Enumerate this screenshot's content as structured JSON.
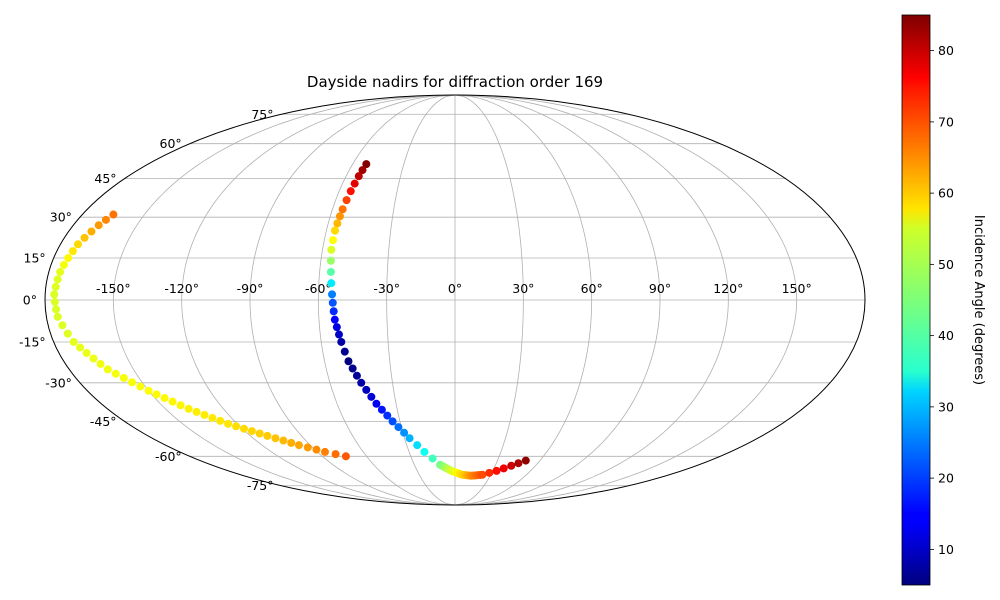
{
  "chart_data": {
    "type": "scatter",
    "projection": "mollweide",
    "title": "Dayside nadirs for diffraction order 169",
    "grid": true,
    "x_ticks": [
      "-150°",
      "-120°",
      "-90°",
      "-60°",
      "-30°",
      "0°",
      "30°",
      "60°",
      "90°",
      "120°",
      "150°"
    ],
    "y_ticks": [
      "-75°",
      "-60°",
      "-45°",
      "-30°",
      "-15°",
      "0°",
      "15°",
      "30°",
      "45°",
      "60°",
      "75°"
    ],
    "xlim": [
      -180,
      180
    ],
    "ylim": [
      -90,
      90
    ],
    "colorbar": {
      "label": "Incidence Angle (degrees)",
      "colormap": "jet",
      "range": [
        5,
        85
      ],
      "ticks": [
        "10",
        "20",
        "30",
        "40",
        "50",
        "60",
        "70",
        "80"
      ]
    },
    "series": [
      {
        "points": [
          {
            "lon": -165,
            "lat": 31,
            "c": 66
          },
          {
            "lon": -168,
            "lat": 27,
            "c": 63
          },
          {
            "lon": -172,
            "lat": 20,
            "c": 58
          },
          {
            "lon": -175,
            "lat": 10,
            "c": 53
          },
          {
            "lon": -176,
            "lat": 2,
            "c": 52
          },
          {
            "lon": -175,
            "lat": -6,
            "c": 52
          },
          {
            "lon": -171,
            "lat": -15,
            "c": 53
          },
          {
            "lon": -162,
            "lat": -25,
            "c": 54
          },
          {
            "lon": -150,
            "lat": -33,
            "c": 55
          },
          {
            "lon": -138,
            "lat": -40,
            "c": 56
          },
          {
            "lon": -125,
            "lat": -46,
            "c": 57
          },
          {
            "lon": -110,
            "lat": -51,
            "c": 59
          },
          {
            "lon": -97,
            "lat": -55,
            "c": 62
          },
          {
            "lon": -85,
            "lat": -58,
            "c": 65
          },
          {
            "lon": -74,
            "lat": -60,
            "c": 68
          }
        ]
      },
      {
        "points": [
          {
            "lon": -52,
            "lat": 51,
            "c": 85
          },
          {
            "lon": -53,
            "lat": 46,
            "c": 80
          },
          {
            "lon": -54,
            "lat": 40,
            "c": 74
          },
          {
            "lon": -55,
            "lat": 33,
            "c": 66
          },
          {
            "lon": -56,
            "lat": 25,
            "c": 58
          },
          {
            "lon": -56,
            "lat": 18,
            "c": 52
          },
          {
            "lon": -55,
            "lat": 10,
            "c": 42
          },
          {
            "lon": -54,
            "lat": 2,
            "c": 25
          },
          {
            "lon": -53,
            "lat": -7,
            "c": 15
          },
          {
            "lon": -51,
            "lat": -15,
            "c": 8
          },
          {
            "lon": -49,
            "lat": -22,
            "c": 5
          },
          {
            "lon": -45,
            "lat": -30,
            "c": 8
          },
          {
            "lon": -40,
            "lat": -38,
            "c": 14
          },
          {
            "lon": -34,
            "lat": -45,
            "c": 21
          },
          {
            "lon": -27,
            "lat": -52,
            "c": 29
          },
          {
            "lon": -20,
            "lat": -58,
            "c": 36
          },
          {
            "lon": -11,
            "lat": -64,
            "c": 44
          },
          {
            "lon": -3,
            "lat": -67,
            "c": 52
          },
          {
            "lon": 6,
            "lat": -69,
            "c": 58
          },
          {
            "lon": 14,
            "lat": -69.5,
            "c": 64
          },
          {
            "lon": 23,
            "lat": -69,
            "c": 69
          },
          {
            "lon": 33,
            "lat": -67,
            "c": 74
          },
          {
            "lon": 42,
            "lat": -64.5,
            "c": 79
          },
          {
            "lon": 50,
            "lat": -62,
            "c": 84
          }
        ]
      }
    ]
  }
}
